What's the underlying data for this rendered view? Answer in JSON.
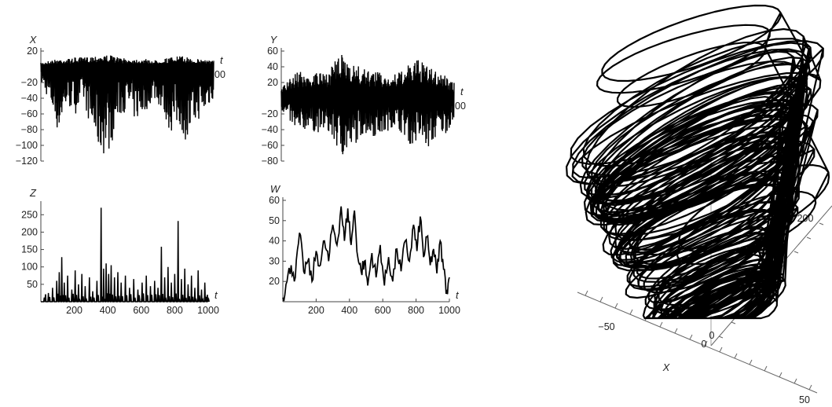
{
  "chart_data": [
    {
      "type": "line",
      "ylabel": "X",
      "xlabel": "t",
      "xlim": [
        0,
        1000
      ],
      "ylim": [
        -120,
        20
      ],
      "x_ticks": [],
      "y_ticks": [
        20,
        -20,
        -40,
        -60,
        -80,
        -100,
        -120
      ],
      "x_tick_labels": [],
      "y_tick_labels": [
        "20",
        "−20",
        "−40",
        "−60",
        "−80",
        "−100",
        "−120"
      ],
      "annotations": [
        "00"
      ],
      "series": [
        {
          "envelope": [
            {
              "t": 0,
              "min": -20,
              "max": 5
            },
            {
              "t": 50,
              "min": -45,
              "max": 8
            },
            {
              "t": 100,
              "min": -85,
              "max": 10
            },
            {
              "t": 150,
              "min": -50,
              "max": 10
            },
            {
              "t": 200,
              "min": -60,
              "max": 12
            },
            {
              "t": 250,
              "min": -45,
              "max": 12
            },
            {
              "t": 300,
              "min": -90,
              "max": 14
            },
            {
              "t": 350,
              "min": -115,
              "max": 15
            },
            {
              "t": 400,
              "min": -105,
              "max": 15
            },
            {
              "t": 450,
              "min": -65,
              "max": 12
            },
            {
              "t": 500,
              "min": -55,
              "max": 10
            },
            {
              "t": 550,
              "min": -70,
              "max": 10
            },
            {
              "t": 600,
              "min": -60,
              "max": 10
            },
            {
              "t": 650,
              "min": -40,
              "max": 8
            },
            {
              "t": 700,
              "min": -55,
              "max": 10
            },
            {
              "t": 750,
              "min": -85,
              "max": 12
            },
            {
              "t": 800,
              "min": -75,
              "max": 14
            },
            {
              "t": 850,
              "min": -100,
              "max": 12
            },
            {
              "t": 900,
              "min": -70,
              "max": 10
            },
            {
              "t": 950,
              "min": -60,
              "max": 10
            },
            {
              "t": 1000,
              "min": -40,
              "max": 8
            }
          ]
        }
      ]
    },
    {
      "type": "line",
      "ylabel": "Y",
      "xlabel": "t",
      "xlim": [
        0,
        1000
      ],
      "ylim": [
        -80,
        60
      ],
      "x_ticks": [],
      "y_ticks": [
        60,
        40,
        20,
        -20,
        -40,
        -60,
        -80
      ],
      "x_tick_labels": [],
      "y_tick_labels": [
        "60",
        "40",
        "20",
        "−20",
        "−40",
        "−60",
        "−80"
      ],
      "annotations": [
        "00"
      ],
      "series": [
        {
          "envelope": [
            {
              "t": 0,
              "min": -15,
              "max": 15
            },
            {
              "t": 50,
              "min": -30,
              "max": 25
            },
            {
              "t": 100,
              "min": -55,
              "max": 35
            },
            {
              "t": 150,
              "min": -35,
              "max": 30
            },
            {
              "t": 200,
              "min": -45,
              "max": 35
            },
            {
              "t": 250,
              "min": -40,
              "max": 30
            },
            {
              "t": 300,
              "min": -55,
              "max": 45
            },
            {
              "t": 350,
              "min": -75,
              "max": 55
            },
            {
              "t": 400,
              "min": -70,
              "max": 50
            },
            {
              "t": 450,
              "min": -50,
              "max": 40
            },
            {
              "t": 500,
              "min": -45,
              "max": 35
            },
            {
              "t": 550,
              "min": -50,
              "max": 35
            },
            {
              "t": 600,
              "min": -45,
              "max": 30
            },
            {
              "t": 650,
              "min": -35,
              "max": 30
            },
            {
              "t": 700,
              "min": -45,
              "max": 35
            },
            {
              "t": 750,
              "min": -60,
              "max": 45
            },
            {
              "t": 800,
              "min": -55,
              "max": 50
            },
            {
              "t": 850,
              "min": -65,
              "max": 40
            },
            {
              "t": 900,
              "min": -50,
              "max": 35
            },
            {
              "t": 950,
              "min": -45,
              "max": 30
            },
            {
              "t": 1000,
              "min": -30,
              "max": 20
            }
          ]
        }
      ]
    },
    {
      "type": "line",
      "ylabel": "Z",
      "xlabel": "t",
      "xlim": [
        0,
        1000
      ],
      "ylim": [
        0,
        280
      ],
      "x_ticks": [
        200,
        400,
        600,
        800,
        1000
      ],
      "y_ticks": [
        50,
        100,
        150,
        200,
        250
      ],
      "x_tick_labels": [
        "200",
        "400",
        "600",
        "800",
        "1000"
      ],
      "y_tick_labels": [
        "50",
        "100",
        "150",
        "200",
        "250"
      ],
      "annotations": [],
      "series": [
        {
          "spikes": [
            {
              "t": 20,
              "v": 12
            },
            {
              "t": 45,
              "v": 25
            },
            {
              "t": 70,
              "v": 40
            },
            {
              "t": 95,
              "v": 60
            },
            {
              "t": 110,
              "v": 85
            },
            {
              "t": 125,
              "v": 128
            },
            {
              "t": 140,
              "v": 55
            },
            {
              "t": 160,
              "v": 75
            },
            {
              "t": 185,
              "v": 35
            },
            {
              "t": 205,
              "v": 90
            },
            {
              "t": 225,
              "v": 50
            },
            {
              "t": 245,
              "v": 80
            },
            {
              "t": 265,
              "v": 45
            },
            {
              "t": 290,
              "v": 70
            },
            {
              "t": 310,
              "v": 30
            },
            {
              "t": 335,
              "v": 60
            },
            {
              "t": 360,
              "v": 270
            },
            {
              "t": 375,
              "v": 95
            },
            {
              "t": 390,
              "v": 110
            },
            {
              "t": 405,
              "v": 80
            },
            {
              "t": 420,
              "v": 105
            },
            {
              "t": 440,
              "v": 70
            },
            {
              "t": 460,
              "v": 85
            },
            {
              "t": 480,
              "v": 55
            },
            {
              "t": 505,
              "v": 75
            },
            {
              "t": 530,
              "v": 40
            },
            {
              "t": 555,
              "v": 65
            },
            {
              "t": 580,
              "v": 35
            },
            {
              "t": 605,
              "v": 55
            },
            {
              "t": 630,
              "v": 75
            },
            {
              "t": 655,
              "v": 45
            },
            {
              "t": 680,
              "v": 60
            },
            {
              "t": 700,
              "v": 40
            },
            {
              "t": 720,
              "v": 158
            },
            {
              "t": 740,
              "v": 70
            },
            {
              "t": 760,
              "v": 100
            },
            {
              "t": 780,
              "v": 55
            },
            {
              "t": 800,
              "v": 80
            },
            {
              "t": 820,
              "v": 232
            },
            {
              "t": 840,
              "v": 65
            },
            {
              "t": 860,
              "v": 95
            },
            {
              "t": 880,
              "v": 50
            },
            {
              "t": 900,
              "v": 75
            },
            {
              "t": 920,
              "v": 40
            },
            {
              "t": 940,
              "v": 90
            },
            {
              "t": 960,
              "v": 35
            },
            {
              "t": 980,
              "v": 55
            },
            {
              "t": 995,
              "v": 20
            }
          ]
        }
      ]
    },
    {
      "type": "line",
      "ylabel": "W",
      "xlabel": "t",
      "xlim": [
        0,
        1000
      ],
      "ylim": [
        10,
        60
      ],
      "x_ticks": [
        200,
        400,
        600,
        800,
        1000
      ],
      "y_ticks": [
        20,
        30,
        40,
        50,
        60
      ],
      "x_tick_labels": [
        "200",
        "400",
        "600",
        "800",
        "1000"
      ],
      "y_tick_labels": [
        "20",
        "30",
        "40",
        "50",
        "60"
      ],
      "annotations": [],
      "series": [
        {
          "points": [
            {
              "t": 0,
              "v": 12
            },
            {
              "t": 25,
              "v": 20
            },
            {
              "t": 50,
              "v": 28
            },
            {
              "t": 75,
              "v": 22
            },
            {
              "t": 100,
              "v": 44
            },
            {
              "t": 125,
              "v": 25
            },
            {
              "t": 150,
              "v": 30
            },
            {
              "t": 175,
              "v": 20
            },
            {
              "t": 200,
              "v": 35
            },
            {
              "t": 225,
              "v": 28
            },
            {
              "t": 250,
              "v": 40
            },
            {
              "t": 275,
              "v": 30
            },
            {
              "t": 300,
              "v": 48
            },
            {
              "t": 325,
              "v": 38
            },
            {
              "t": 350,
              "v": 57
            },
            {
              "t": 370,
              "v": 40
            },
            {
              "t": 390,
              "v": 56
            },
            {
              "t": 410,
              "v": 38
            },
            {
              "t": 430,
              "v": 55
            },
            {
              "t": 450,
              "v": 32
            },
            {
              "t": 470,
              "v": 25
            },
            {
              "t": 490,
              "v": 30
            },
            {
              "t": 510,
              "v": 18
            },
            {
              "t": 535,
              "v": 34
            },
            {
              "t": 560,
              "v": 22
            },
            {
              "t": 585,
              "v": 38
            },
            {
              "t": 610,
              "v": 18
            },
            {
              "t": 635,
              "v": 32
            },
            {
              "t": 660,
              "v": 20
            },
            {
              "t": 685,
              "v": 36
            },
            {
              "t": 710,
              "v": 25
            },
            {
              "t": 735,
              "v": 40
            },
            {
              "t": 760,
              "v": 30
            },
            {
              "t": 785,
              "v": 48
            },
            {
              "t": 805,
              "v": 35
            },
            {
              "t": 825,
              "v": 52
            },
            {
              "t": 845,
              "v": 32
            },
            {
              "t": 865,
              "v": 42
            },
            {
              "t": 885,
              "v": 28
            },
            {
              "t": 905,
              "v": 36
            },
            {
              "t": 925,
              "v": 24
            },
            {
              "t": 945,
              "v": 40
            },
            {
              "t": 965,
              "v": 26
            },
            {
              "t": 985,
              "v": 15
            },
            {
              "t": 1000,
              "v": 22
            }
          ]
        }
      ]
    },
    {
      "type": "line",
      "projection": "3d",
      "axis_labels": [
        "X"
      ],
      "tick_labels": [
        "−50",
        "0",
        "0",
        "50",
        "200"
      ],
      "series": [
        {
          "description_loops": [
            {
              "cx": 0,
              "cy": 0,
              "cz": 200,
              "rx": 60,
              "ry": 25
            },
            {
              "cx": 0,
              "cy": 0,
              "cz": 160,
              "rx": 50,
              "ry": 22
            },
            {
              "cx": 5,
              "cy": 0,
              "cz": 120,
              "rx": 40,
              "ry": 18
            },
            {
              "cx": 10,
              "cy": 0,
              "cz": 80,
              "rx": 30,
              "ry": 14
            },
            {
              "cx": 15,
              "cy": 0,
              "cz": 40,
              "rx": 20,
              "ry": 10
            }
          ]
        }
      ]
    }
  ]
}
